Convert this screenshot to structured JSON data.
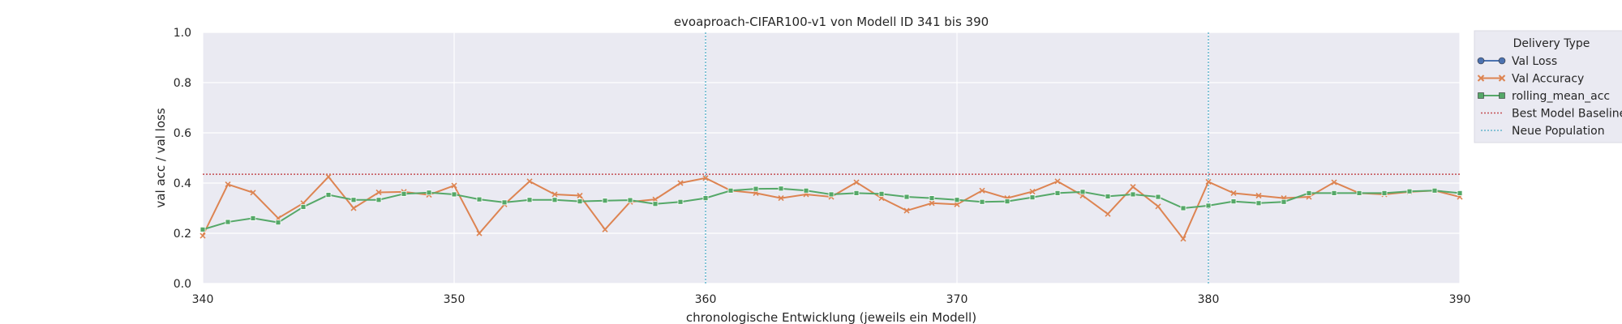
{
  "chart_data": {
    "type": "line",
    "title": "evoaproach-CIFAR100-v1 von Modell ID 341 bis 390",
    "xlabel": "chronologische Entwicklung (jeweils ein Modell)",
    "ylabel": "val acc / val loss",
    "xlim": [
      340,
      390
    ],
    "ylim": [
      0,
      1
    ],
    "x_ticks": [
      "340",
      "350",
      "360",
      "370",
      "380",
      "390"
    ],
    "y_ticks": [
      "0.0",
      "0.2",
      "0.4",
      "0.6",
      "0.8",
      "1.0"
    ],
    "grid": true,
    "legend": {
      "title": "Delivery Type",
      "placement": "right-outside-top",
      "entries": [
        "Val Loss",
        "Val Accuracy",
        "rolling_mean_acc",
        "Best Model Baseline",
        "Neue Population"
      ]
    },
    "x": [
      340,
      341,
      342,
      343,
      344,
      345,
      346,
      347,
      348,
      349,
      350,
      351,
      352,
      353,
      354,
      355,
      356,
      357,
      358,
      359,
      360,
      361,
      362,
      363,
      364,
      365,
      366,
      367,
      368,
      369,
      370,
      371,
      372,
      373,
      374,
      375,
      376,
      377,
      378,
      379,
      380,
      381,
      382,
      383,
      384,
      385,
      386,
      387,
      388,
      389,
      390
    ],
    "series": [
      {
        "name": "Val Accuracy",
        "color": "#dd8452",
        "marker": "x",
        "values": [
          0.19,
          0.395,
          0.362,
          0.26,
          0.32,
          0.425,
          0.3,
          0.363,
          0.365,
          0.353,
          0.39,
          0.2,
          0.315,
          0.407,
          0.355,
          0.35,
          0.215,
          0.325,
          0.335,
          0.4,
          0.42,
          0.37,
          0.36,
          0.34,
          0.355,
          0.345,
          0.403,
          0.34,
          0.29,
          0.32,
          0.315,
          0.37,
          0.34,
          0.366,
          0.407,
          0.35,
          0.277,
          0.385,
          0.307,
          0.178,
          0.405,
          0.36,
          0.35,
          0.34,
          0.345,
          0.403,
          0.36,
          0.355,
          0.365,
          0.37,
          0.345
        ]
      },
      {
        "name": "rolling_mean_acc",
        "color": "#55a868",
        "marker": "square",
        "values": [
          0.215,
          0.245,
          0.26,
          0.243,
          0.305,
          0.353,
          0.333,
          0.333,
          0.357,
          0.362,
          0.355,
          0.335,
          0.323,
          0.333,
          0.333,
          0.327,
          0.33,
          0.332,
          0.317,
          0.325,
          0.34,
          0.37,
          0.377,
          0.378,
          0.37,
          0.355,
          0.36,
          0.357,
          0.345,
          0.34,
          0.333,
          0.325,
          0.327,
          0.343,
          0.36,
          0.365,
          0.347,
          0.355,
          0.345,
          0.3,
          0.31,
          0.327,
          0.32,
          0.325,
          0.36,
          0.36,
          0.36,
          0.36,
          0.367,
          0.37,
          0.36
        ]
      }
    ],
    "baseline": {
      "name": "Best Model Baseline",
      "value": 0.435,
      "color": "#c44e52"
    },
    "population_lines": {
      "name": "Neue Population",
      "x": [
        360,
        380
      ],
      "color": "#64b5cd"
    },
    "val_loss_color": "#4c72b0"
  }
}
